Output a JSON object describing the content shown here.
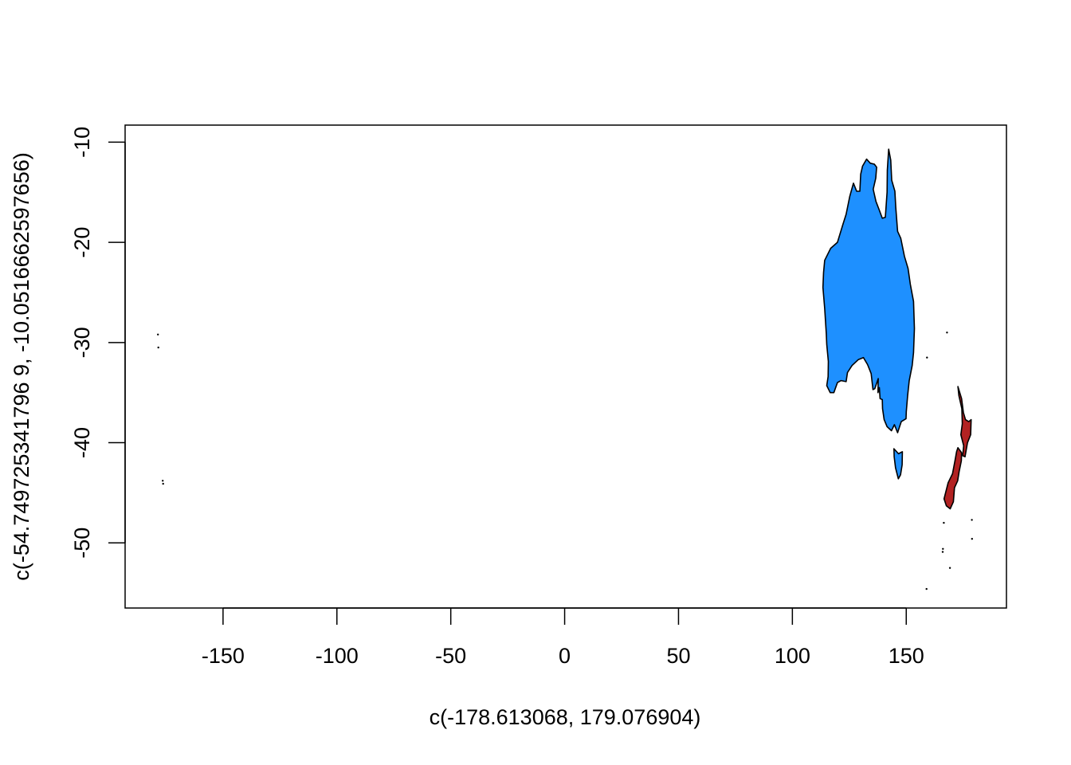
{
  "chart_data": {
    "type": "map",
    "xlabel": "c(-178.613068, 179.076904)",
    "ylabel": "c(-54.749725341796 9, -10.0516662597656)",
    "xlim": [
      -193,
      194
    ],
    "ylim": [
      -56.5,
      -8.3
    ],
    "x_ticks": [
      -150,
      -100,
      -50,
      0,
      50,
      100,
      150
    ],
    "y_ticks": [
      -10,
      -20,
      -30,
      -40,
      -50
    ],
    "x_tick_labels": [
      "-150",
      "-100",
      "-50",
      "0",
      "50",
      "100",
      "150"
    ],
    "y_tick_labels": [
      "-10",
      "-20",
      "-30",
      "-40",
      "-50"
    ],
    "colors": {
      "australia": "#1e90ff",
      "new_zealand": "#b22222",
      "outline": "#000000"
    },
    "regions": [
      {
        "name": "Australia",
        "color": "#1e90ff",
        "polygon": [
          [
            114.2,
            -21.8
          ],
          [
            116.8,
            -20.6
          ],
          [
            119.8,
            -20.0
          ],
          [
            122.2,
            -18.2
          ],
          [
            123.6,
            -17.2
          ],
          [
            125.2,
            -15.4
          ],
          [
            126.8,
            -14.1
          ],
          [
            128.2,
            -14.9
          ],
          [
            129.6,
            -14.9
          ],
          [
            130.0,
            -13.2
          ],
          [
            130.8,
            -12.4
          ],
          [
            132.6,
            -11.7
          ],
          [
            134.2,
            -12.1
          ],
          [
            136.0,
            -12.2
          ],
          [
            137.0,
            -12.5
          ],
          [
            136.6,
            -13.6
          ],
          [
            135.5,
            -14.7
          ],
          [
            136.7,
            -15.9
          ],
          [
            138.2,
            -16.8
          ],
          [
            139.5,
            -17.6
          ],
          [
            140.8,
            -17.5
          ],
          [
            141.6,
            -15.0
          ],
          [
            141.7,
            -12.8
          ],
          [
            142.3,
            -10.7
          ],
          [
            143.2,
            -11.8
          ],
          [
            143.6,
            -13.8
          ],
          [
            145.0,
            -14.9
          ],
          [
            145.4,
            -16.5
          ],
          [
            146.2,
            -18.9
          ],
          [
            147.6,
            -19.6
          ],
          [
            149.2,
            -21.4
          ],
          [
            150.8,
            -22.6
          ],
          [
            151.8,
            -24.2
          ],
          [
            153.2,
            -25.9
          ],
          [
            153.6,
            -28.6
          ],
          [
            153.2,
            -31.0
          ],
          [
            152.6,
            -32.3
          ],
          [
            151.3,
            -33.8
          ],
          [
            150.6,
            -35.3
          ],
          [
            150.0,
            -36.9
          ],
          [
            149.9,
            -37.6
          ],
          [
            147.8,
            -37.9
          ],
          [
            146.2,
            -39.0
          ],
          [
            144.8,
            -38.2
          ],
          [
            143.5,
            -38.8
          ],
          [
            141.6,
            -38.4
          ],
          [
            140.3,
            -37.7
          ],
          [
            139.6,
            -36.6
          ],
          [
            139.5,
            -35.7
          ],
          [
            138.5,
            -35.6
          ],
          [
            138.2,
            -34.5
          ],
          [
            137.6,
            -35.0
          ],
          [
            137.7,
            -33.6
          ],
          [
            136.2,
            -34.6
          ],
          [
            135.4,
            -34.7
          ],
          [
            134.6,
            -33.1
          ],
          [
            133.0,
            -32.2
          ],
          [
            131.2,
            -31.5
          ],
          [
            129.0,
            -31.7
          ],
          [
            126.2,
            -32.3
          ],
          [
            124.2,
            -33.0
          ],
          [
            123.6,
            -33.9
          ],
          [
            121.4,
            -33.8
          ],
          [
            119.8,
            -34.0
          ],
          [
            118.2,
            -35.0
          ],
          [
            116.6,
            -35.0
          ],
          [
            115.1,
            -34.3
          ],
          [
            115.7,
            -33.4
          ],
          [
            115.8,
            -31.9
          ],
          [
            115.1,
            -30.2
          ],
          [
            114.9,
            -29.1
          ],
          [
            114.2,
            -26.6
          ],
          [
            113.4,
            -24.5
          ],
          [
            113.7,
            -23.0
          ]
        ]
      },
      {
        "name": "Tasmania",
        "color": "#1e90ff",
        "polygon": [
          [
            144.6,
            -40.6
          ],
          [
            146.6,
            -41.1
          ],
          [
            148.3,
            -40.9
          ],
          [
            148.2,
            -42.2
          ],
          [
            147.5,
            -43.2
          ],
          [
            146.5,
            -43.6
          ],
          [
            145.3,
            -42.5
          ],
          [
            144.7,
            -41.4
          ]
        ]
      },
      {
        "name": "New Zealand North Island",
        "color": "#b22222",
        "polygon": [
          [
            172.7,
            -34.4
          ],
          [
            174.3,
            -35.6
          ],
          [
            175.1,
            -37.0
          ],
          [
            176.0,
            -37.7
          ],
          [
            177.4,
            -37.9
          ],
          [
            178.5,
            -37.7
          ],
          [
            178.3,
            -39.2
          ],
          [
            176.9,
            -40.0
          ],
          [
            175.8,
            -41.4
          ],
          [
            174.8,
            -41.3
          ],
          [
            175.2,
            -40.3
          ],
          [
            174.0,
            -39.2
          ],
          [
            174.6,
            -38.1
          ],
          [
            174.4,
            -36.6
          ],
          [
            173.1,
            -35.3
          ]
        ]
      },
      {
        "name": "New Zealand South Island",
        "color": "#b22222",
        "polygon": [
          [
            172.7,
            -40.5
          ],
          [
            174.3,
            -41.0
          ],
          [
            174.2,
            -41.8
          ],
          [
            173.2,
            -42.9
          ],
          [
            172.6,
            -43.8
          ],
          [
            171.2,
            -44.5
          ],
          [
            170.7,
            -45.9
          ],
          [
            169.3,
            -46.6
          ],
          [
            167.6,
            -46.3
          ],
          [
            166.6,
            -45.6
          ],
          [
            168.4,
            -44.0
          ],
          [
            170.3,
            -43.1
          ],
          [
            171.4,
            -41.8
          ],
          [
            172.1,
            -40.9
          ]
        ]
      }
    ],
    "islands": [
      [
        -178.6,
        -29.2
      ],
      [
        -178.4,
        -30.5
      ],
      [
        -176.5,
        -43.8
      ],
      [
        -176.3,
        -44.1
      ],
      [
        159.1,
        -31.5
      ],
      [
        178.8,
        -47.7
      ],
      [
        178.9,
        -49.6
      ],
      [
        166.1,
        -50.6
      ],
      [
        166.0,
        -50.9
      ],
      [
        169.2,
        -52.5
      ],
      [
        158.9,
        -54.6
      ],
      [
        167.9,
        -29.0
      ],
      [
        166.5,
        -48.0
      ]
    ]
  }
}
